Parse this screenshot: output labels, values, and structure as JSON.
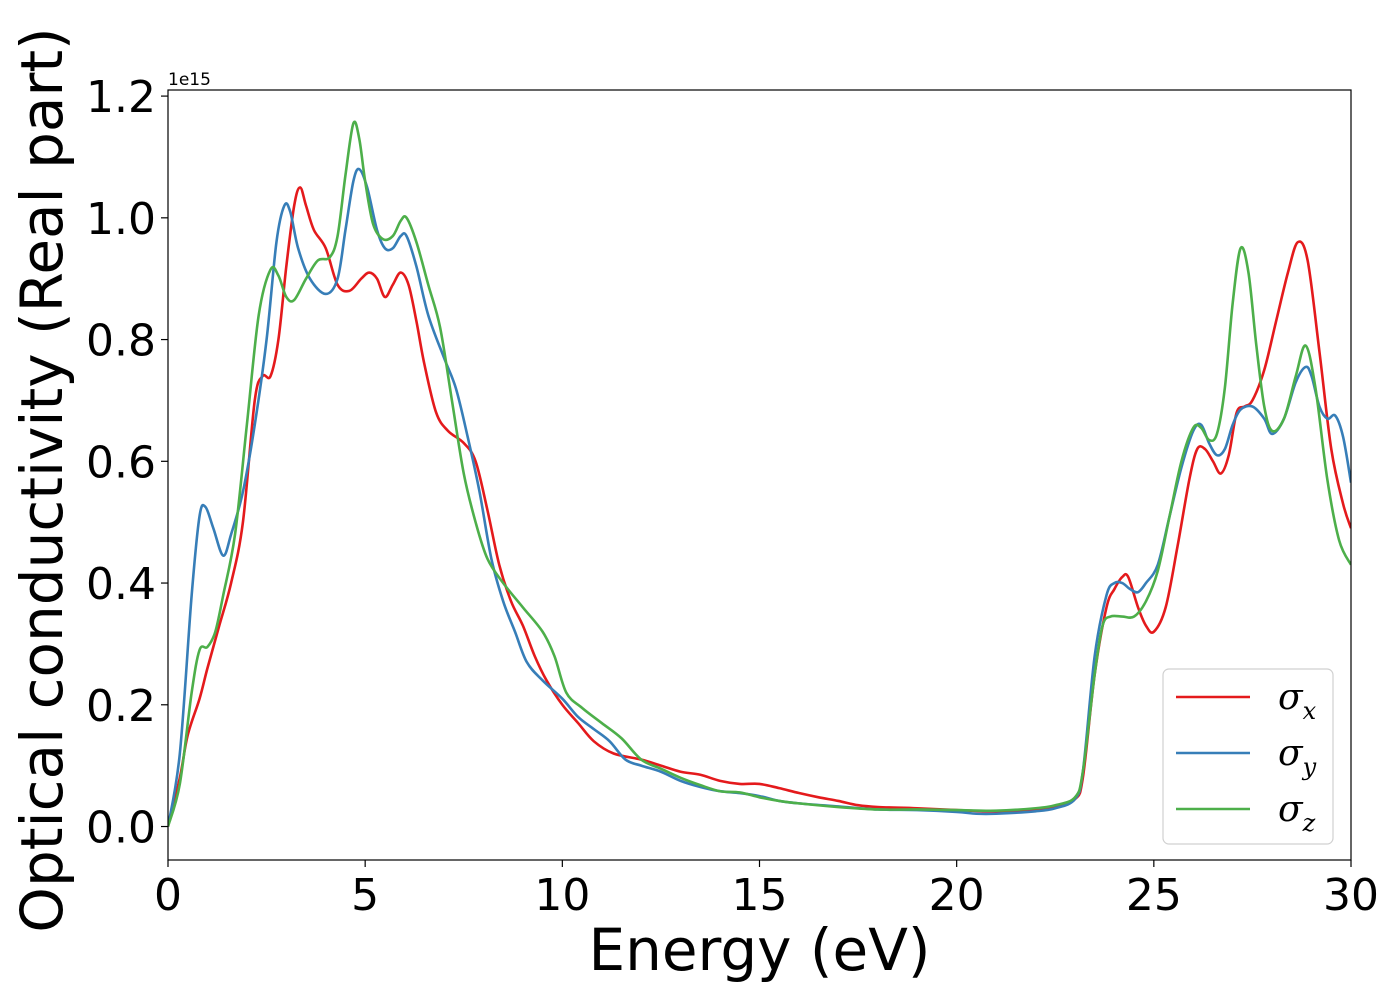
{
  "chart_data": {
    "type": "line",
    "xlabel": "Energy (eV)",
    "ylabel": "Optical conductivity (Real part)",
    "y_offset_label": "1e15",
    "xlim": [
      0,
      30
    ],
    "ylim": [
      -0.055,
      1.21
    ],
    "x_ticks": [
      0,
      5,
      10,
      15,
      20,
      25,
      30
    ],
    "x_tick_labels": [
      "0",
      "5",
      "10",
      "15",
      "20",
      "25",
      "30"
    ],
    "y_ticks": [
      0.0,
      0.2,
      0.4,
      0.6,
      0.8,
      1.0,
      1.2
    ],
    "y_tick_labels": [
      "0.0",
      "0.2",
      "0.4",
      "0.6",
      "0.8",
      "1.0",
      "1.2"
    ],
    "grid": false,
    "legend_position": "lower-right",
    "series": [
      {
        "name": "σx",
        "legend_base": "σ",
        "legend_sub": "x",
        "color": "#e41a1c",
        "points": [
          [
            0,
            0.0
          ],
          [
            0.3,
            0.08
          ],
          [
            0.5,
            0.15
          ],
          [
            0.8,
            0.21
          ],
          [
            1.0,
            0.26
          ],
          [
            1.3,
            0.33
          ],
          [
            1.6,
            0.4
          ],
          [
            1.9,
            0.5
          ],
          [
            2.2,
            0.7
          ],
          [
            2.4,
            0.74
          ],
          [
            2.6,
            0.74
          ],
          [
            2.8,
            0.8
          ],
          [
            3.0,
            0.92
          ],
          [
            3.2,
            1.02
          ],
          [
            3.35,
            1.05
          ],
          [
            3.5,
            1.02
          ],
          [
            3.7,
            0.98
          ],
          [
            4.0,
            0.95
          ],
          [
            4.3,
            0.89
          ],
          [
            4.6,
            0.88
          ],
          [
            4.9,
            0.9
          ],
          [
            5.1,
            0.91
          ],
          [
            5.3,
            0.9
          ],
          [
            5.5,
            0.87
          ],
          [
            5.7,
            0.89
          ],
          [
            5.9,
            0.91
          ],
          [
            6.1,
            0.89
          ],
          [
            6.3,
            0.83
          ],
          [
            6.5,
            0.76
          ],
          [
            6.8,
            0.68
          ],
          [
            7.1,
            0.65
          ],
          [
            7.5,
            0.63
          ],
          [
            7.8,
            0.6
          ],
          [
            8.1,
            0.52
          ],
          [
            8.4,
            0.43
          ],
          [
            8.7,
            0.37
          ],
          [
            9.0,
            0.33
          ],
          [
            9.3,
            0.28
          ],
          [
            9.6,
            0.24
          ],
          [
            10.0,
            0.2
          ],
          [
            10.4,
            0.17
          ],
          [
            10.8,
            0.14
          ],
          [
            11.3,
            0.12
          ],
          [
            12.0,
            0.11
          ],
          [
            12.5,
            0.1
          ],
          [
            13.0,
            0.09
          ],
          [
            13.5,
            0.085
          ],
          [
            14.0,
            0.075
          ],
          [
            14.5,
            0.07
          ],
          [
            15.0,
            0.07
          ],
          [
            15.5,
            0.063
          ],
          [
            16.0,
            0.055
          ],
          [
            16.5,
            0.048
          ],
          [
            17.0,
            0.042
          ],
          [
            17.5,
            0.035
          ],
          [
            18.0,
            0.032
          ],
          [
            19.0,
            0.03
          ],
          [
            20.0,
            0.027
          ],
          [
            21.0,
            0.025
          ],
          [
            22.0,
            0.028
          ],
          [
            22.5,
            0.032
          ],
          [
            23.0,
            0.045
          ],
          [
            23.2,
            0.08
          ],
          [
            23.5,
            0.25
          ],
          [
            23.8,
            0.36
          ],
          [
            24.0,
            0.39
          ],
          [
            24.2,
            0.41
          ],
          [
            24.35,
            0.41
          ],
          [
            24.6,
            0.36
          ],
          [
            24.8,
            0.33
          ],
          [
            25.0,
            0.32
          ],
          [
            25.3,
            0.36
          ],
          [
            25.6,
            0.46
          ],
          [
            25.9,
            0.57
          ],
          [
            26.1,
            0.62
          ],
          [
            26.3,
            0.62
          ],
          [
            26.5,
            0.6
          ],
          [
            26.7,
            0.58
          ],
          [
            26.9,
            0.61
          ],
          [
            27.1,
            0.68
          ],
          [
            27.3,
            0.69
          ],
          [
            27.5,
            0.7
          ],
          [
            27.8,
            0.75
          ],
          [
            28.1,
            0.83
          ],
          [
            28.4,
            0.91
          ],
          [
            28.65,
            0.96
          ],
          [
            28.9,
            0.93
          ],
          [
            29.2,
            0.78
          ],
          [
            29.5,
            0.62
          ],
          [
            29.8,
            0.53
          ],
          [
            30.0,
            0.49
          ]
        ]
      },
      {
        "name": "σy",
        "legend_base": "σ",
        "legend_sub": "y",
        "color": "#377eb8",
        "points": [
          [
            0,
            0.0
          ],
          [
            0.3,
            0.12
          ],
          [
            0.6,
            0.38
          ],
          [
            0.8,
            0.51
          ],
          [
            0.95,
            0.525
          ],
          [
            1.15,
            0.49
          ],
          [
            1.4,
            0.445
          ],
          [
            1.6,
            0.48
          ],
          [
            1.9,
            0.55
          ],
          [
            2.2,
            0.66
          ],
          [
            2.5,
            0.8
          ],
          [
            2.75,
            0.96
          ],
          [
            2.95,
            1.02
          ],
          [
            3.1,
            1.01
          ],
          [
            3.3,
            0.95
          ],
          [
            3.6,
            0.9
          ],
          [
            4.0,
            0.875
          ],
          [
            4.3,
            0.9
          ],
          [
            4.5,
            0.98
          ],
          [
            4.7,
            1.06
          ],
          [
            4.85,
            1.08
          ],
          [
            5.05,
            1.05
          ],
          [
            5.3,
            0.98
          ],
          [
            5.5,
            0.95
          ],
          [
            5.7,
            0.95
          ],
          [
            5.9,
            0.97
          ],
          [
            6.05,
            0.97
          ],
          [
            6.3,
            0.92
          ],
          [
            6.6,
            0.84
          ],
          [
            7.0,
            0.77
          ],
          [
            7.3,
            0.72
          ],
          [
            7.6,
            0.64
          ],
          [
            7.9,
            0.55
          ],
          [
            8.2,
            0.44
          ],
          [
            8.5,
            0.37
          ],
          [
            8.8,
            0.32
          ],
          [
            9.1,
            0.27
          ],
          [
            9.5,
            0.24
          ],
          [
            10.0,
            0.21
          ],
          [
            10.4,
            0.18
          ],
          [
            10.8,
            0.16
          ],
          [
            11.2,
            0.14
          ],
          [
            11.6,
            0.11
          ],
          [
            12.0,
            0.1
          ],
          [
            12.5,
            0.09
          ],
          [
            13.0,
            0.075
          ],
          [
            13.5,
            0.065
          ],
          [
            14.0,
            0.058
          ],
          [
            14.5,
            0.055
          ],
          [
            15.0,
            0.05
          ],
          [
            15.5,
            0.042
          ],
          [
            16.0,
            0.038
          ],
          [
            17.0,
            0.033
          ],
          [
            18.0,
            0.028
          ],
          [
            19.0,
            0.027
          ],
          [
            20.0,
            0.024
          ],
          [
            20.5,
            0.021
          ],
          [
            21.0,
            0.021
          ],
          [
            22.0,
            0.025
          ],
          [
            22.5,
            0.03
          ],
          [
            23.0,
            0.045
          ],
          [
            23.2,
            0.09
          ],
          [
            23.5,
            0.28
          ],
          [
            23.8,
            0.38
          ],
          [
            24.0,
            0.4
          ],
          [
            24.2,
            0.4
          ],
          [
            24.4,
            0.39
          ],
          [
            24.6,
            0.385
          ],
          [
            24.8,
            0.4
          ],
          [
            25.1,
            0.43
          ],
          [
            25.4,
            0.51
          ],
          [
            25.7,
            0.59
          ],
          [
            26.0,
            0.65
          ],
          [
            26.2,
            0.66
          ],
          [
            26.4,
            0.63
          ],
          [
            26.6,
            0.61
          ],
          [
            26.8,
            0.62
          ],
          [
            27.0,
            0.66
          ],
          [
            27.2,
            0.685
          ],
          [
            27.5,
            0.69
          ],
          [
            27.8,
            0.67
          ],
          [
            28.0,
            0.645
          ],
          [
            28.3,
            0.67
          ],
          [
            28.6,
            0.73
          ],
          [
            28.85,
            0.755
          ],
          [
            29.0,
            0.74
          ],
          [
            29.2,
            0.69
          ],
          [
            29.4,
            0.67
          ],
          [
            29.6,
            0.675
          ],
          [
            29.8,
            0.64
          ],
          [
            30.0,
            0.565
          ]
        ]
      },
      {
        "name": "σz",
        "legend_base": "σ",
        "legend_sub": "z",
        "color": "#4daf4a",
        "points": [
          [
            0,
            0.0
          ],
          [
            0.3,
            0.07
          ],
          [
            0.6,
            0.22
          ],
          [
            0.8,
            0.29
          ],
          [
            1.0,
            0.295
          ],
          [
            1.2,
            0.32
          ],
          [
            1.4,
            0.38
          ],
          [
            1.7,
            0.48
          ],
          [
            2.0,
            0.66
          ],
          [
            2.3,
            0.84
          ],
          [
            2.6,
            0.915
          ],
          [
            2.8,
            0.905
          ],
          [
            3.0,
            0.87
          ],
          [
            3.2,
            0.865
          ],
          [
            3.5,
            0.9
          ],
          [
            3.8,
            0.93
          ],
          [
            4.1,
            0.935
          ],
          [
            4.3,
            0.97
          ],
          [
            4.5,
            1.07
          ],
          [
            4.7,
            1.155
          ],
          [
            4.85,
            1.13
          ],
          [
            5.0,
            1.06
          ],
          [
            5.2,
            0.99
          ],
          [
            5.45,
            0.965
          ],
          [
            5.7,
            0.97
          ],
          [
            5.9,
            0.995
          ],
          [
            6.05,
            1.0
          ],
          [
            6.3,
            0.96
          ],
          [
            6.6,
            0.89
          ],
          [
            6.9,
            0.82
          ],
          [
            7.2,
            0.7
          ],
          [
            7.5,
            0.58
          ],
          [
            7.8,
            0.5
          ],
          [
            8.1,
            0.44
          ],
          [
            8.5,
            0.4
          ],
          [
            9.0,
            0.36
          ],
          [
            9.5,
            0.32
          ],
          [
            9.8,
            0.28
          ],
          [
            10.1,
            0.22
          ],
          [
            10.5,
            0.195
          ],
          [
            11.0,
            0.17
          ],
          [
            11.5,
            0.145
          ],
          [
            12.0,
            0.11
          ],
          [
            12.5,
            0.095
          ],
          [
            13.0,
            0.08
          ],
          [
            13.5,
            0.068
          ],
          [
            14.0,
            0.058
          ],
          [
            14.5,
            0.056
          ],
          [
            15.0,
            0.048
          ],
          [
            15.5,
            0.042
          ],
          [
            16.0,
            0.038
          ],
          [
            17.0,
            0.032
          ],
          [
            18.0,
            0.028
          ],
          [
            19.0,
            0.028
          ],
          [
            20.0,
            0.027
          ],
          [
            21.0,
            0.026
          ],
          [
            22.0,
            0.03
          ],
          [
            22.5,
            0.035
          ],
          [
            23.0,
            0.048
          ],
          [
            23.2,
            0.09
          ],
          [
            23.5,
            0.25
          ],
          [
            23.7,
            0.33
          ],
          [
            23.9,
            0.345
          ],
          [
            24.2,
            0.345
          ],
          [
            24.5,
            0.345
          ],
          [
            24.8,
            0.37
          ],
          [
            25.1,
            0.42
          ],
          [
            25.4,
            0.51
          ],
          [
            25.7,
            0.6
          ],
          [
            26.0,
            0.655
          ],
          [
            26.2,
            0.655
          ],
          [
            26.4,
            0.635
          ],
          [
            26.6,
            0.645
          ],
          [
            26.8,
            0.72
          ],
          [
            27.0,
            0.86
          ],
          [
            27.2,
            0.95
          ],
          [
            27.4,
            0.91
          ],
          [
            27.6,
            0.79
          ],
          [
            27.8,
            0.69
          ],
          [
            28.0,
            0.65
          ],
          [
            28.3,
            0.67
          ],
          [
            28.6,
            0.74
          ],
          [
            28.85,
            0.79
          ],
          [
            29.1,
            0.72
          ],
          [
            29.4,
            0.57
          ],
          [
            29.7,
            0.47
          ],
          [
            30.0,
            0.43
          ]
        ]
      }
    ]
  }
}
